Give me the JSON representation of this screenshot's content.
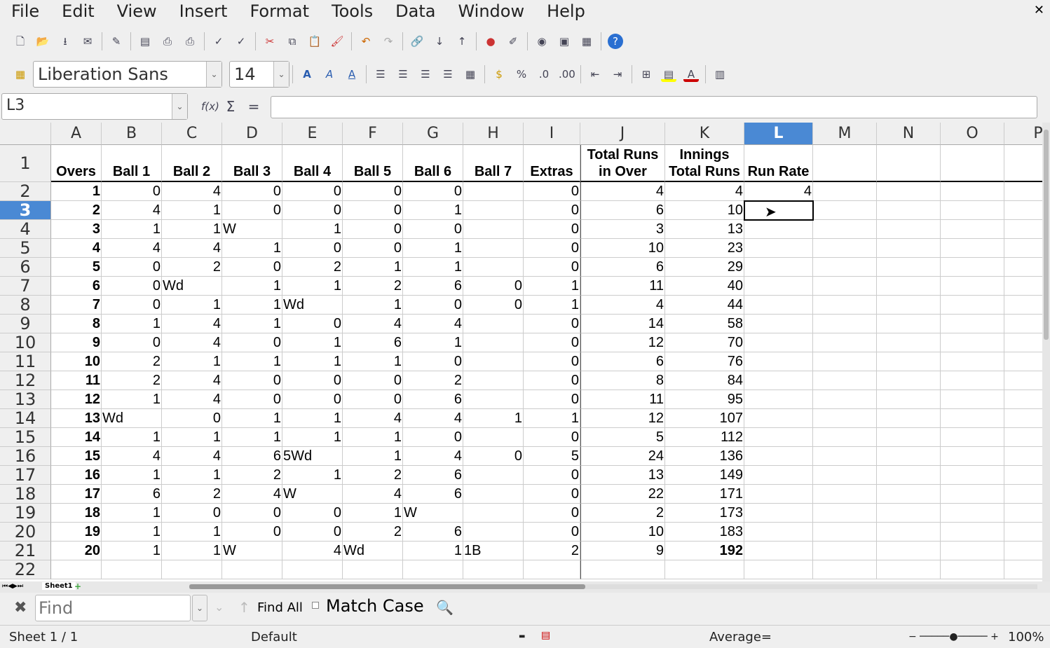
{
  "menu": [
    "File",
    "Edit",
    "View",
    "Insert",
    "Format",
    "Tools",
    "Data",
    "Window",
    "Help"
  ],
  "font": {
    "name": "Liberation Sans",
    "size": "14"
  },
  "name_box": "L3",
  "formula": "",
  "columns": [
    "A",
    "B",
    "C",
    "D",
    "E",
    "F",
    "G",
    "H",
    "I",
    "J",
    "K",
    "L",
    "M",
    "N",
    "O",
    "P"
  ],
  "selected": {
    "col": "L",
    "row": "3"
  },
  "header_row": [
    "Overs",
    "Ball 1",
    "Ball 2",
    "Ball 3",
    "Ball 4",
    "Ball 5",
    "Ball 6",
    "Ball 7",
    "Extras",
    "Total Runs in Over",
    "Innings Total Runs",
    "Run Rate"
  ],
  "rows": [
    [
      1,
      0,
      4,
      0,
      0,
      0,
      0,
      "",
      0,
      4,
      4,
      4
    ],
    [
      2,
      4,
      1,
      0,
      0,
      0,
      1,
      "",
      0,
      6,
      10,
      ""
    ],
    [
      3,
      1,
      1,
      "W",
      1,
      0,
      0,
      "",
      0,
      3,
      13,
      ""
    ],
    [
      4,
      4,
      4,
      1,
      0,
      0,
      1,
      "",
      0,
      10,
      23,
      ""
    ],
    [
      5,
      0,
      2,
      0,
      2,
      1,
      1,
      "",
      0,
      6,
      29,
      ""
    ],
    [
      6,
      0,
      "Wd",
      1,
      1,
      2,
      6,
      0,
      1,
      11,
      40,
      ""
    ],
    [
      7,
      0,
      1,
      1,
      "Wd",
      1,
      0,
      0,
      1,
      4,
      44,
      ""
    ],
    [
      8,
      1,
      4,
      1,
      0,
      4,
      4,
      "",
      0,
      14,
      58,
      ""
    ],
    [
      9,
      0,
      4,
      0,
      1,
      6,
      1,
      "",
      0,
      12,
      70,
      ""
    ],
    [
      10,
      2,
      1,
      1,
      1,
      1,
      0,
      "",
      0,
      6,
      76,
      ""
    ],
    [
      11,
      2,
      4,
      0,
      0,
      0,
      2,
      "",
      0,
      8,
      84,
      ""
    ],
    [
      12,
      1,
      4,
      0,
      0,
      0,
      6,
      "",
      0,
      11,
      95,
      ""
    ],
    [
      13,
      "Wd",
      0,
      1,
      1,
      4,
      4,
      1,
      1,
      12,
      107,
      ""
    ],
    [
      14,
      1,
      1,
      1,
      1,
      1,
      0,
      "",
      0,
      5,
      112,
      ""
    ],
    [
      15,
      4,
      4,
      6,
      "5Wd",
      1,
      4,
      0,
      5,
      24,
      136,
      ""
    ],
    [
      16,
      1,
      1,
      2,
      1,
      2,
      6,
      "",
      0,
      13,
      149,
      ""
    ],
    [
      17,
      6,
      2,
      4,
      "W",
      4,
      6,
      "",
      0,
      22,
      171,
      ""
    ],
    [
      18,
      1,
      0,
      0,
      0,
      1,
      "W",
      "",
      0,
      2,
      173,
      ""
    ],
    [
      19,
      1,
      1,
      0,
      0,
      2,
      6,
      "",
      0,
      10,
      183,
      ""
    ],
    [
      20,
      1,
      1,
      "W",
      4,
      "Wd",
      1,
      "1B",
      2,
      9,
      192,
      ""
    ]
  ],
  "sheet_tab": "Sheet1",
  "find": {
    "placeholder": "Find",
    "find_all": "Find All",
    "match_case": "Match Case"
  },
  "status": {
    "sheet": "Sheet 1 / 1",
    "style": "Default",
    "sum": "Average=",
    "zoom": "100%"
  }
}
